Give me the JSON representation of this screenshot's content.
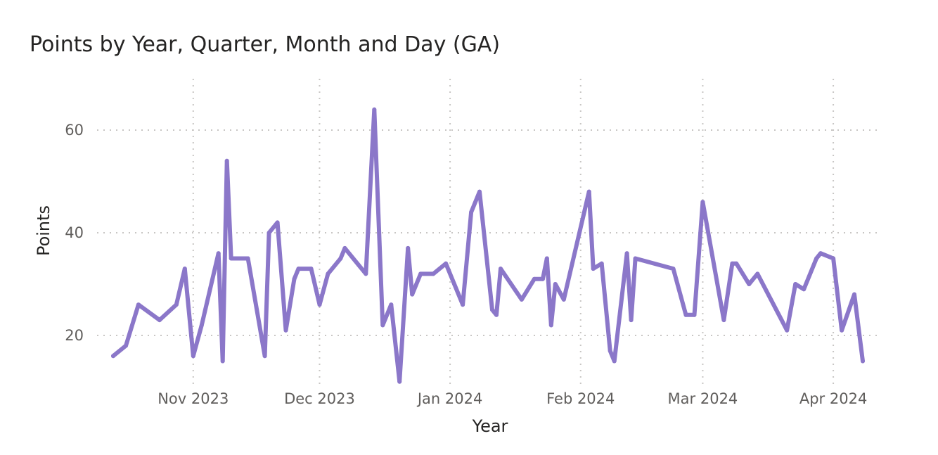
{
  "chart_data": {
    "type": "line",
    "title": "Points by Year, Quarter, Month and Day (GA)",
    "xlabel": "Year",
    "ylabel": "Points",
    "xlim": [
      "2023-10-13",
      "2024-04-09"
    ],
    "ylim": [
      10,
      70
    ],
    "x_ticks": [
      {
        "date": "2023-11-01",
        "label": "Nov 2023"
      },
      {
        "date": "2023-12-01",
        "label": "Dec 2023"
      },
      {
        "date": "2024-01-01",
        "label": "Jan 2024"
      },
      {
        "date": "2024-02-01",
        "label": "Feb 2024"
      },
      {
        "date": "2024-03-01",
        "label": "Mar 2024"
      },
      {
        "date": "2024-04-01",
        "label": "Apr 2024"
      }
    ],
    "y_ticks": [
      20,
      40,
      60
    ],
    "grid": true,
    "color": "#8b77c9",
    "series": [
      {
        "x": [
          "2023-10-13",
          "2023-10-16",
          "2023-10-19",
          "2023-10-24",
          "2023-10-28",
          "2023-10-30",
          "2023-11-01",
          "2023-11-03",
          "2023-11-07",
          "2023-11-08",
          "2023-11-09",
          "2023-11-10",
          "2023-11-14",
          "2023-11-18",
          "2023-11-19",
          "2023-11-21",
          "2023-11-23",
          "2023-11-25",
          "2023-11-26",
          "2023-11-29",
          "2023-12-01",
          "2023-12-03",
          "2023-12-06",
          "2023-12-07",
          "2023-12-12",
          "2023-12-14",
          "2023-12-16",
          "2023-12-18",
          "2023-12-20",
          "2023-12-22",
          "2023-12-23",
          "2023-12-25",
          "2023-12-28",
          "2023-12-31",
          "2024-01-02",
          "2024-01-04",
          "2024-01-06",
          "2024-01-08",
          "2024-01-11",
          "2024-01-12",
          "2024-01-13",
          "2024-01-18",
          "2024-01-21",
          "2024-01-23",
          "2024-01-24",
          "2024-01-25",
          "2024-01-26",
          "2024-01-28",
          "2024-02-03",
          "2024-02-04",
          "2024-02-06",
          "2024-02-08",
          "2024-02-09",
          "2024-02-12",
          "2024-02-13",
          "2024-02-14",
          "2024-02-23",
          "2024-02-24",
          "2024-02-26",
          "2024-02-28",
          "2024-03-01",
          "2024-03-06",
          "2024-03-08",
          "2024-03-09",
          "2024-03-12",
          "2024-03-14",
          "2024-03-21",
          "2024-03-23",
          "2024-03-25",
          "2024-03-28",
          "2024-03-29",
          "2024-04-01",
          "2024-04-03",
          "2024-04-06",
          "2024-04-08"
        ],
        "y": [
          16,
          18,
          26,
          23,
          26,
          33,
          16,
          22,
          36,
          15,
          54,
          35,
          35,
          16,
          40,
          42,
          21,
          31,
          33,
          33,
          26,
          32,
          35,
          37,
          32,
          64,
          22,
          26,
          11,
          37,
          28,
          32,
          32,
          34,
          30,
          26,
          44,
          48,
          25,
          24,
          33,
          27,
          31,
          31,
          35,
          22,
          30,
          27,
          48,
          33,
          34,
          17,
          15,
          36,
          23,
          35,
          33,
          30,
          24,
          24,
          46,
          23,
          34,
          34,
          30,
          32,
          21,
          30,
          29,
          35,
          36,
          35,
          21,
          28,
          15
        ]
      }
    ]
  }
}
